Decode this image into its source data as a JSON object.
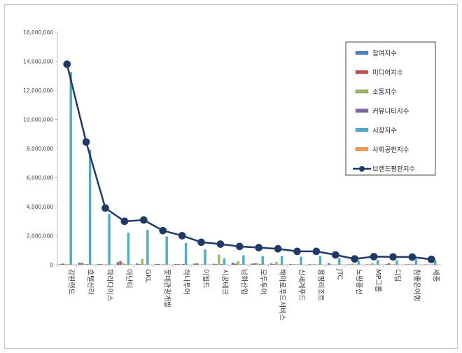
{
  "chart_data": {
    "type": "bar",
    "categories": [
      "강원랜드",
      "호텔신라",
      "파라다이스",
      "아난티",
      "GKL",
      "롯데관광개발",
      "하나투어",
      "이월드",
      "시공테크",
      "남화산업",
      "모두투어",
      "해마로푸드서비스",
      "신세계푸드",
      "용평리조트",
      "JTC",
      "노랑풍선",
      "MP그룹",
      "디딤",
      "참좋은여행",
      "세중"
    ],
    "series": [
      {
        "name": "참여지수",
        "color": "#4f81bd",
        "values": [
          40000,
          150000,
          50000,
          180000,
          90000,
          60000,
          60000,
          80000,
          70000,
          150000,
          80000,
          90000,
          60000,
          40000,
          120000,
          30000,
          30000,
          40000,
          30000,
          20000
        ]
      },
      {
        "name": "미디어지수",
        "color": "#c0504d",
        "values": [
          80000,
          120000,
          40000,
          250000,
          40000,
          50000,
          50000,
          100000,
          40000,
          80000,
          100000,
          60000,
          30000,
          20000,
          20000,
          20000,
          20000,
          100000,
          30000,
          20000
        ]
      },
      {
        "name": "소통지수",
        "color": "#9bbb59",
        "values": [
          60000,
          60000,
          30000,
          120000,
          400000,
          20000,
          40000,
          30000,
          700000,
          250000,
          120000,
          200000,
          40000,
          40000,
          10000,
          80000,
          120000,
          30000,
          40000,
          20000
        ]
      },
      {
        "name": "커뮤니티지수",
        "color": "#8064a2",
        "values": [
          30000,
          40000,
          20000,
          30000,
          20000,
          20000,
          60000,
          20000,
          40000,
          20000,
          40000,
          20000,
          20000,
          10000,
          10000,
          10000,
          10000,
          20000,
          20000,
          10000
        ]
      },
      {
        "name": "시장지수",
        "color": "#4bacc6",
        "values": [
          13250000,
          7900000,
          3500000,
          2200000,
          2400000,
          1950000,
          1500000,
          1050000,
          450000,
          650000,
          600000,
          600000,
          550000,
          600000,
          450000,
          250000,
          320000,
          300000,
          380000,
          300000
        ]
      },
      {
        "name": "사회공헌지수",
        "color": "#f79646",
        "values": [
          20000,
          20000,
          10000,
          10000,
          10000,
          10000,
          10000,
          10000,
          10000,
          10000,
          10000,
          10000,
          10000,
          10000,
          10000,
          10000,
          10000,
          10000,
          10000,
          10000
        ]
      }
    ],
    "line_series": {
      "name": "브랜드평판지수",
      "color": "#1f3864",
      "values": [
        13800000,
        8450000,
        3900000,
        2990000,
        3080000,
        2350000,
        2000000,
        1550000,
        1420000,
        1260000,
        1180000,
        1100000,
        920000,
        920000,
        680000,
        400000,
        560000,
        540000,
        530000,
        370000
      ]
    },
    "ylim": [
      0,
      16000000
    ],
    "yticks": [
      "0",
      "2,000,000",
      "4,000,000",
      "6,000,000",
      "8,000,000",
      "10,000,000",
      "12,000,000",
      "14,000,000",
      "16,000,000"
    ],
    "ytick_values": [
      0,
      2000000,
      4000000,
      6000000,
      8000000,
      10000000,
      12000000,
      14000000,
      16000000
    ],
    "legend": "right",
    "grid": false,
    "title": "",
    "xlabel": "",
    "ylabel": ""
  }
}
